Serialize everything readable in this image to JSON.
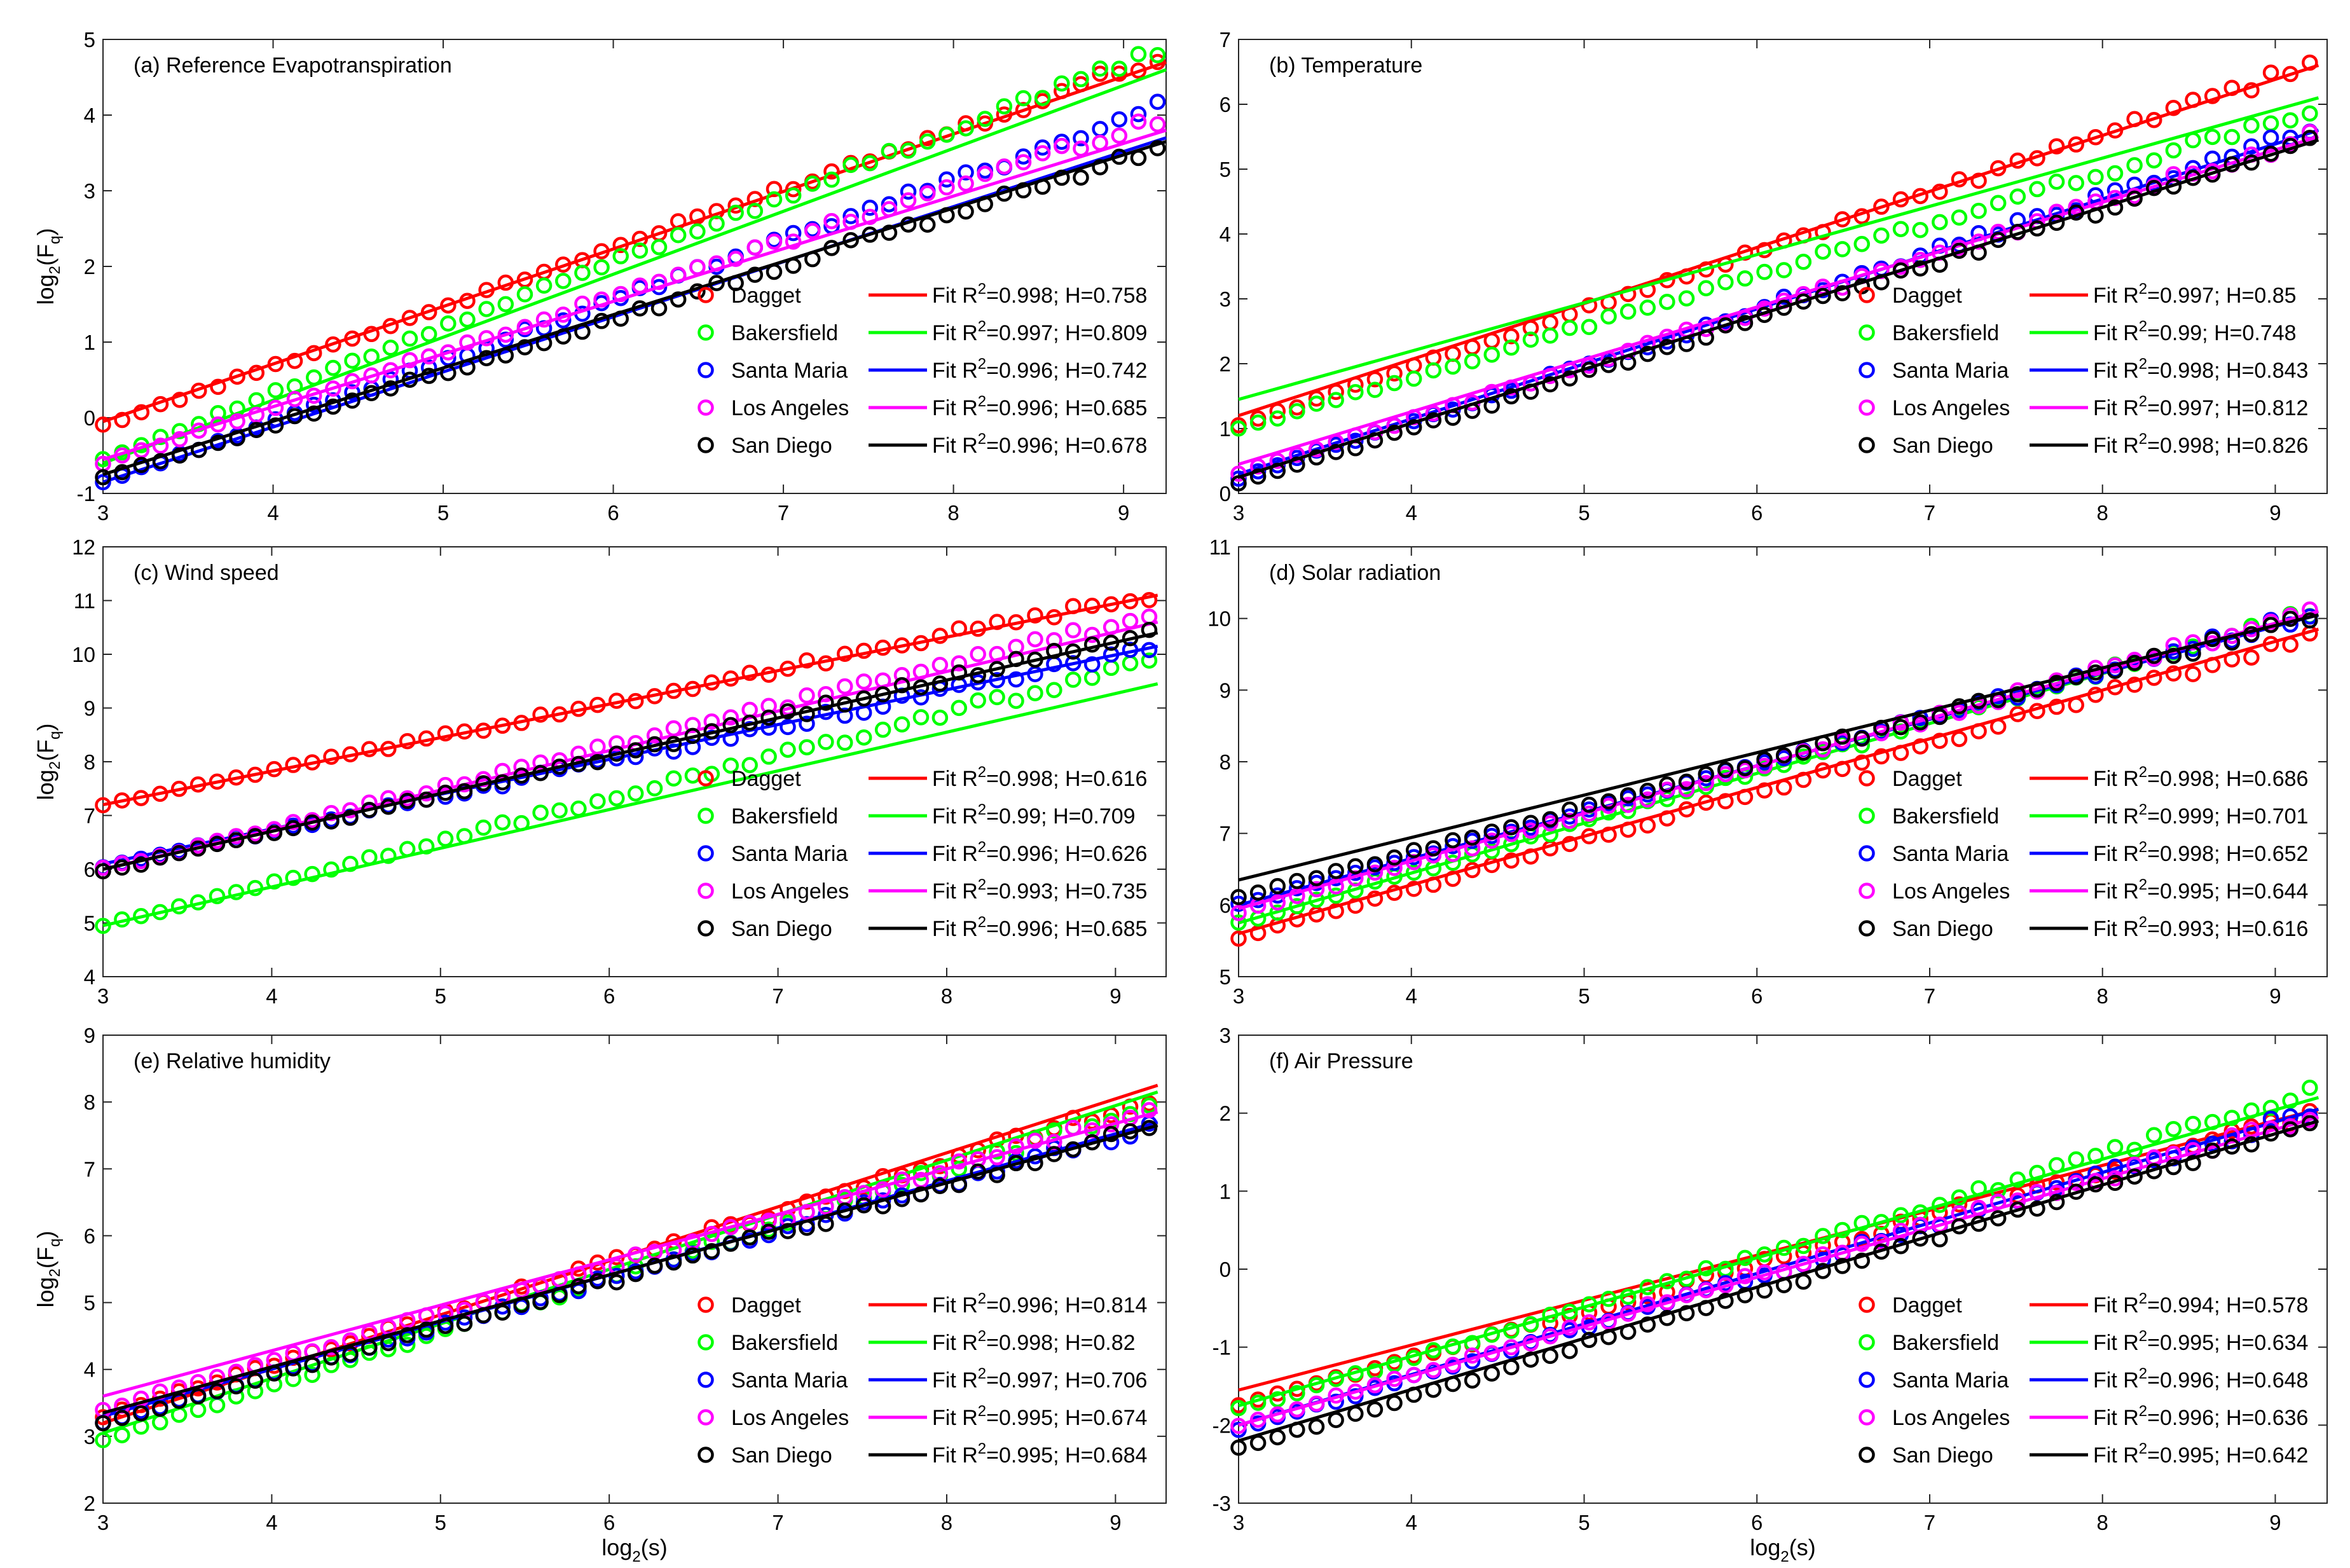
{
  "figure": {
    "xlabel": "log",
    "xlabel_sub": "2",
    "xlabel_rest": "(s)",
    "ylabel": "log",
    "ylabel_sub": "2",
    "ylabel_rest": "(F",
    "ylabel_sub2": "q",
    "ylabel_close": ")"
  },
  "stations": [
    {
      "name": "Dagget",
      "color": "#ff0000"
    },
    {
      "name": "Bakersfield",
      "color": "#00ff00"
    },
    {
      "name": "Santa Maria",
      "color": "#0000ff"
    },
    {
      "name": "Los Angeles",
      "color": "#ff00ff"
    },
    {
      "name": "San Diego",
      "color": "#000000"
    }
  ],
  "chart_data": [
    {
      "type": "scatter",
      "title": "(a) Reference Evapotranspiration",
      "xlabel": "",
      "ylabel": "log2(Fq)",
      "xlim": [
        3,
        9.25
      ],
      "ylim": [
        -1,
        5
      ],
      "xticks": [
        3,
        4,
        5,
        6,
        7,
        8,
        9
      ],
      "yticks": [
        -1,
        0,
        1,
        2,
        3,
        4,
        5
      ],
      "series": [
        {
          "name": "Dagget",
          "fit_label": "Fit R",
          "r2": "0.998",
          "h": "0.758",
          "y0": -0.1,
          "y1": 4.75,
          "yfit0": -0.05,
          "yfit1": 4.7
        },
        {
          "name": "Bakersfield",
          "fit_label": "Fit R",
          "r2": "0.997",
          "h": "0.809",
          "y0": -0.55,
          "y1": 4.85,
          "yfit0": -0.6,
          "yfit1": 4.6
        },
        {
          "name": "Santa Maria",
          "fit_label": "Fit R",
          "r2": "0.996",
          "h": "0.742",
          "y0": -0.85,
          "y1": 4.1,
          "yfit0": -0.85,
          "yfit1": 3.7
        },
        {
          "name": "Los Angeles",
          "fit_label": "Fit R",
          "r2": "0.996",
          "h": "0.685",
          "y0": -0.6,
          "y1": 3.95,
          "yfit0": -0.55,
          "yfit1": 3.8
        },
        {
          "name": "San Diego",
          "fit_label": "Fit R",
          "r2": "0.996",
          "h": "0.678",
          "y0": -0.8,
          "y1": 3.55,
          "yfit0": -0.75,
          "yfit1": 3.65
        }
      ]
    },
    {
      "type": "scatter",
      "title": "(b) Temperature",
      "xlabel": "",
      "ylabel": "",
      "xlim": [
        3,
        9.3
      ],
      "ylim": [
        0,
        7
      ],
      "xticks": [
        3,
        4,
        5,
        6,
        7,
        8,
        9
      ],
      "yticks": [
        0,
        1,
        2,
        3,
        4,
        5,
        6,
        7
      ],
      "series": [
        {
          "name": "Dagget",
          "fit_label": "Fit R",
          "r2": "0.997",
          "h": "0.85",
          "y0": 1.05,
          "y1": 6.6,
          "yfit0": 1.2,
          "yfit1": 6.6
        },
        {
          "name": "Bakersfield",
          "fit_label": "Fit R",
          "r2": "0.99",
          "h": "0.748",
          "y0": 1.0,
          "y1": 5.9,
          "yfit0": 1.45,
          "yfit1": 6.1
        },
        {
          "name": "Santa Maria",
          "fit_label": "Fit R",
          "r2": "0.998",
          "h": "0.843",
          "y0": 0.25,
          "y1": 5.6,
          "yfit0": 0.3,
          "yfit1": 5.6
        },
        {
          "name": "Los Angeles",
          "fit_label": "Fit R",
          "r2": "0.997",
          "h": "0.812",
          "y0": 0.3,
          "y1": 5.5,
          "yfit0": 0.45,
          "yfit1": 5.5
        },
        {
          "name": "San Diego",
          "fit_label": "Fit R",
          "r2": "0.998",
          "h": "0.826",
          "y0": 0.15,
          "y1": 5.4,
          "yfit0": 0.25,
          "yfit1": 5.45
        }
      ]
    },
    {
      "type": "scatter",
      "title": "(c) Wind speed",
      "xlabel": "",
      "ylabel": "log2(Fq)",
      "xlim": [
        3,
        9.3
      ],
      "ylim": [
        4,
        12
      ],
      "xticks": [
        3,
        4,
        5,
        6,
        7,
        8,
        9
      ],
      "yticks": [
        4,
        5,
        6,
        7,
        8,
        9,
        10,
        11,
        12
      ],
      "series": [
        {
          "name": "Dagget",
          "fit_label": "Fit R",
          "r2": "0.998",
          "h": "0.616",
          "y0": 7.2,
          "y1": 11.1,
          "yfit0": 7.2,
          "yfit1": 11.1
        },
        {
          "name": "Bakersfield",
          "fit_label": "Fit R",
          "r2": "0.99",
          "h": "0.709",
          "y0": 4.95,
          "y1": 9.85,
          "yfit0": 4.95,
          "yfit1": 9.45
        },
        {
          "name": "Santa Maria",
          "fit_label": "Fit R",
          "r2": "0.996",
          "h": "0.626",
          "y0": 6.05,
          "y1": 10.1,
          "yfit0": 6.1,
          "yfit1": 10.15
        },
        {
          "name": "Los Angeles",
          "fit_label": "Fit R",
          "r2": "0.993",
          "h": "0.735",
          "y0": 6.0,
          "y1": 10.7,
          "yfit0": 6.0,
          "yfit1": 10.6
        },
        {
          "name": "San Diego",
          "fit_label": "Fit R",
          "r2": "0.996",
          "h": "0.685",
          "y0": 5.95,
          "y1": 10.4,
          "yfit0": 6.0,
          "yfit1": 10.4
        }
      ]
    },
    {
      "type": "scatter",
      "title": "(d) Solar radiation",
      "xlabel": "",
      "ylabel": "",
      "xlim": [
        3,
        9.3
      ],
      "ylim": [
        5,
        11
      ],
      "xticks": [
        3,
        4,
        5,
        6,
        7,
        8,
        9
      ],
      "yticks": [
        5,
        6,
        7,
        8,
        9,
        10,
        11
      ],
      "series": [
        {
          "name": "Dagget",
          "fit_label": "Fit R",
          "r2": "0.998",
          "h": "0.686",
          "y0": 5.55,
          "y1": 9.75,
          "yfit0": 5.6,
          "yfit1": 9.85
        },
        {
          "name": "Bakersfield",
          "fit_label": "Fit R",
          "r2": "0.999",
          "h": "0.701",
          "y0": 5.75,
          "y1": 10.1,
          "yfit0": 5.75,
          "yfit1": 10.1
        },
        {
          "name": "Santa Maria",
          "fit_label": "Fit R",
          "r2": "0.998",
          "h": "0.652",
          "y0": 6.0,
          "y1": 10.05,
          "yfit0": 6.0,
          "yfit1": 10.05
        },
        {
          "name": "Los Angeles",
          "fit_label": "Fit R",
          "r2": "0.995",
          "h": "0.644",
          "y0": 5.9,
          "y1": 10.1,
          "yfit0": 5.95,
          "yfit1": 10.1
        },
        {
          "name": "San Diego",
          "fit_label": "Fit R",
          "r2": "0.993",
          "h": "0.616",
          "y0": 6.1,
          "y1": 10.0,
          "yfit0": 6.35,
          "yfit1": 10.05
        }
      ]
    },
    {
      "type": "scatter",
      "title": "(e) Relative humidity",
      "xlabel": "log2(s)",
      "ylabel": "log2(Fq)",
      "xlim": [
        3,
        9.3
      ],
      "ylim": [
        2,
        9
      ],
      "xticks": [
        3,
        4,
        5,
        6,
        7,
        8,
        9
      ],
      "yticks": [
        2,
        3,
        4,
        5,
        6,
        7,
        8,
        9
      ],
      "series": [
        {
          "name": "Dagget",
          "fit_label": "Fit R",
          "r2": "0.996",
          "h": "0.814",
          "y0": 3.3,
          "y1": 8.05,
          "yfit0": 3.2,
          "yfit1": 8.25
        },
        {
          "name": "Bakersfield",
          "fit_label": "Fit R",
          "r2": "0.998",
          "h": "0.82",
          "y0": 2.95,
          "y1": 7.95,
          "yfit0": 3.05,
          "yfit1": 8.15
        },
        {
          "name": "Santa Maria",
          "fit_label": "Fit R",
          "r2": "0.997",
          "h": "0.706",
          "y0": 3.2,
          "y1": 7.65,
          "yfit0": 3.3,
          "yfit1": 7.7
        },
        {
          "name": "Los Angeles",
          "fit_label": "Fit R",
          "r2": "0.995",
          "h": "0.674",
          "y0": 3.4,
          "y1": 7.85,
          "yfit0": 3.6,
          "yfit1": 7.85
        },
        {
          "name": "San Diego",
          "fit_label": "Fit R",
          "r2": "0.995",
          "h": "0.684",
          "y0": 3.2,
          "y1": 7.6,
          "yfit0": 3.35,
          "yfit1": 7.65
        }
      ]
    },
    {
      "type": "scatter",
      "title": "(f) Air Pressure",
      "xlabel": "log2(s)",
      "ylabel": "",
      "xlim": [
        3,
        9.3
      ],
      "ylim": [
        -3,
        3
      ],
      "xticks": [
        3,
        4,
        5,
        6,
        7,
        8,
        9
      ],
      "yticks": [
        -3,
        -2,
        -1,
        0,
        1,
        2,
        3
      ],
      "series": [
        {
          "name": "Dagget",
          "fit_label": "Fit R",
          "r2": "0.994",
          "h": "0.578",
          "y0": -1.75,
          "y1": 2.0,
          "yfit0": -1.55,
          "yfit1": 2.05
        },
        {
          "name": "Bakersfield",
          "fit_label": "Fit R",
          "r2": "0.995",
          "h": "0.634",
          "y0": -1.8,
          "y1": 2.25,
          "yfit0": -1.75,
          "yfit1": 2.2
        },
        {
          "name": "Santa Maria",
          "fit_label": "Fit R",
          "r2": "0.996",
          "h": "0.648",
          "y0": -2.05,
          "y1": 2.0,
          "yfit0": -2.0,
          "yfit1": 2.05
        },
        {
          "name": "Los Angeles",
          "fit_label": "Fit R",
          "r2": "0.996",
          "h": "0.636",
          "y0": -2.0,
          "y1": 1.95,
          "yfit0": -2.0,
          "yfit1": 1.95
        },
        {
          "name": "San Diego",
          "fit_label": "Fit R",
          "r2": "0.995",
          "h": "0.642",
          "y0": -2.3,
          "y1": 1.85,
          "yfit0": -2.2,
          "yfit1": 1.9
        }
      ]
    }
  ]
}
